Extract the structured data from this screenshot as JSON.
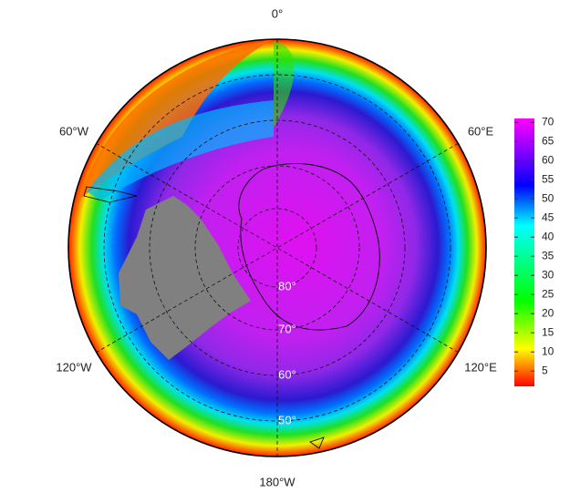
{
  "map": {
    "longitude_labels": {
      "top": "0°",
      "right_top": "60°E",
      "right_bottom": "120°E",
      "bottom": "180°W",
      "left_bottom": "120°W",
      "left_top": "60°W"
    },
    "latitude_labels": [
      "80°",
      "70°",
      "60°",
      "50°"
    ],
    "colorbar": {
      "range": [
        1,
        71
      ],
      "ticks": [
        5,
        10,
        15,
        20,
        25,
        30,
        35,
        40,
        45,
        50,
        55,
        60,
        65,
        70
      ]
    }
  }
}
